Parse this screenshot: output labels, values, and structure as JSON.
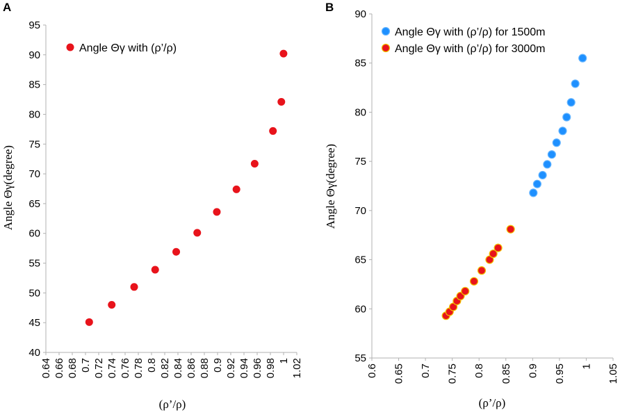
{
  "chart_data": [
    {
      "panel": "A",
      "type": "scatter",
      "xlabel": "(ρ’/ρ)",
      "ylabel": "Angle Θγ(degree)",
      "xlim": [
        0.64,
        1.02
      ],
      "ylim": [
        40,
        95
      ],
      "xticks": [
        "0.64",
        "0.66",
        "0.68",
        "0.7",
        "0.72",
        "0.74",
        "0.76",
        "0.78",
        "0.8",
        "0.82",
        "0.84",
        "0.86",
        "0.88",
        "0.9",
        "0.92",
        "0.94",
        "0.96",
        "0.98",
        "1",
        "1.02"
      ],
      "yticks": [
        "40",
        "45",
        "50",
        "55",
        "60",
        "65",
        "70",
        "75",
        "80",
        "85",
        "90",
        "95"
      ],
      "series": [
        {
          "name": "Angle Θγ with (ρ’/ρ)",
          "color": "#e8131b",
          "x": [
            0.7056,
            0.7397,
            0.7737,
            0.8055,
            0.8374,
            0.8692,
            0.8989,
            0.9286,
            0.9562,
            0.9839,
            0.9966,
            0.9999
          ],
          "y": [
            45.1,
            48.0,
            51.0,
            53.9,
            56.9,
            60.1,
            63.6,
            67.4,
            71.7,
            77.2,
            82.1,
            90.2
          ]
        }
      ]
    },
    {
      "panel": "B",
      "type": "scatter",
      "xlabel": "(ρ’/ρ)",
      "ylabel": "Angle Θγ(degree)",
      "xlim": [
        0.6,
        1.05
      ],
      "ylim": [
        55,
        90
      ],
      "xticks": [
        "0.6",
        "0.65",
        "0.7",
        "0.75",
        "0.8",
        "0.85",
        "0.9",
        "0.95",
        "1",
        "1.05"
      ],
      "yticks": [
        "55",
        "60",
        "65",
        "70",
        "75",
        "80",
        "85",
        "90"
      ],
      "series": [
        {
          "name": "Angle Θγ with (ρ’/ρ) for 1500m",
          "color": "#1e90ff",
          "edge": "#63b4ff",
          "x": [
            0.9013,
            0.9085,
            0.9185,
            0.9272,
            0.9357,
            0.9446,
            0.956,
            0.9634,
            0.9718,
            0.9795,
            0.9932
          ],
          "y": [
            71.8,
            72.7,
            73.6,
            74.7,
            75.7,
            76.9,
            78.1,
            79.5,
            81.0,
            82.9,
            85.5
          ]
        },
        {
          "name": "Angle Θγ with (ρ’/ρ) for 3000m",
          "color": "#e8131b",
          "edge": "#f2c200",
          "x": [
            0.7383,
            0.7449,
            0.7519,
            0.7587,
            0.7654,
            0.7741,
            0.7906,
            0.8049,
            0.8197,
            0.8265,
            0.8355,
            0.8589
          ],
          "y": [
            59.3,
            59.7,
            60.2,
            60.8,
            61.3,
            61.8,
            62.8,
            63.9,
            65.0,
            65.6,
            66.2,
            68.1
          ]
        }
      ]
    }
  ]
}
